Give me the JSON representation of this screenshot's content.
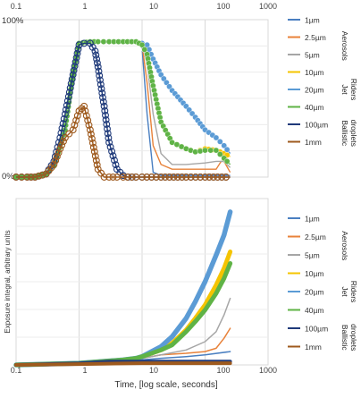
{
  "x_ticks": [
    "0.1",
    "1",
    "10",
    "100",
    "1000"
  ],
  "xlabel": "Time, [log scale, seconds]",
  "legend": {
    "entries": [
      {
        "label": "1µm",
        "color": "#4a7fc1"
      },
      {
        "label": "2.5µm",
        "color": "#e8823a"
      },
      {
        "label": "5µm",
        "color": "#a6a6a6"
      },
      {
        "label": "10µm",
        "color": "#f5c400"
      },
      {
        "label": "20µm",
        "color": "#5b9bd5"
      },
      {
        "label": "40µm",
        "color": "#5fb346"
      },
      {
        "label": "100µm",
        "color": "#1f3a7a"
      },
      {
        "label": "1mm",
        "color": "#9e5a1e"
      }
    ],
    "groups": [
      {
        "label": "Aerosols"
      },
      {
        "label": "Jet Riders"
      },
      {
        "label": "Ballistic droplets"
      }
    ]
  },
  "chart_data": [
    {
      "type": "line",
      "xscale": "log",
      "xlim": [
        0.1,
        1000
      ],
      "ylim": [
        0,
        100
      ],
      "y_tick_labels": [
        "0%",
        "100%"
      ],
      "series": [
        {
          "name": "1µm",
          "color": "#4a7fc1",
          "x": [
            0.1,
            0.15,
            0.2,
            0.3,
            0.4,
            0.6,
            0.8,
            1,
            1.5,
            2,
            3,
            5,
            8,
            10,
            12,
            15,
            20,
            30,
            50,
            100,
            150,
            200,
            250
          ],
          "y": [
            0,
            0,
            0,
            2,
            7,
            30,
            65,
            85,
            86,
            86,
            86,
            86,
            86,
            82,
            40,
            3,
            1,
            1,
            1,
            1,
            1,
            1,
            1
          ]
        },
        {
          "name": "2.5µm",
          "color": "#e8823a",
          "x": [
            0.1,
            0.15,
            0.2,
            0.3,
            0.4,
            0.6,
            0.8,
            1,
            1.5,
            2,
            3,
            5,
            8,
            10,
            12,
            15,
            20,
            30,
            50,
            100,
            150,
            180,
            200,
            250
          ],
          "y": [
            0,
            0,
            0,
            2,
            7,
            30,
            65,
            85,
            86,
            86,
            86,
            86,
            86,
            84,
            60,
            20,
            8,
            5,
            5,
            5,
            5,
            10,
            10,
            3
          ]
        },
        {
          "name": "5µm",
          "color": "#a6a6a6",
          "x": [
            0.1,
            0.15,
            0.2,
            0.3,
            0.4,
            0.6,
            0.8,
            1,
            1.5,
            2,
            3,
            5,
            8,
            10,
            12,
            15,
            20,
            30,
            50,
            100,
            150,
            200,
            250
          ],
          "y": [
            0,
            0,
            0,
            2,
            7,
            30,
            65,
            85,
            86,
            86,
            86,
            86,
            86,
            84,
            72,
            40,
            15,
            8,
            8,
            9,
            10,
            10,
            6
          ]
        },
        {
          "name": "10µm",
          "color": "#f5c400",
          "x": [
            0.1,
            0.15,
            0.2,
            0.3,
            0.4,
            0.6,
            0.8,
            1,
            1.5,
            2,
            3,
            5,
            8,
            10,
            12,
            15,
            20,
            30,
            50,
            70,
            100,
            150,
            200,
            250
          ],
          "y": [
            0,
            0,
            0,
            2,
            7,
            30,
            65,
            85,
            86,
            86,
            86,
            86,
            86,
            84,
            78,
            58,
            35,
            22,
            18,
            16,
            18,
            17,
            15,
            13
          ]
        },
        {
          "name": "20µm",
          "color": "#5b9bd5",
          "x": [
            0.1,
            0.15,
            0.2,
            0.3,
            0.4,
            0.6,
            0.8,
            1,
            1.5,
            2,
            3,
            5,
            8,
            10,
            12,
            15,
            20,
            30,
            50,
            70,
            100,
            150,
            200,
            250
          ],
          "y": [
            0,
            0,
            0,
            2,
            7,
            30,
            65,
            85,
            86,
            86,
            86,
            86,
            86,
            85,
            84,
            75,
            65,
            55,
            45,
            38,
            30,
            25,
            20,
            15
          ]
        },
        {
          "name": "40µm",
          "color": "#5fb346",
          "x": [
            0.1,
            0.15,
            0.2,
            0.3,
            0.4,
            0.6,
            0.8,
            1,
            1.5,
            2,
            3,
            5,
            8,
            10,
            12,
            15,
            20,
            30,
            50,
            70,
            100,
            150,
            200,
            250
          ],
          "y": [
            0,
            0,
            0,
            2,
            7,
            30,
            65,
            85,
            86,
            86,
            86,
            86,
            86,
            84,
            78,
            58,
            35,
            22,
            18,
            16,
            17,
            17,
            12,
            8
          ]
        },
        {
          "name": "100µm",
          "color": "#1f3a7a",
          "x": [
            0.1,
            0.15,
            0.2,
            0.3,
            0.4,
            0.5,
            0.6,
            0.8,
            1,
            1.2,
            1.5,
            1.8,
            2,
            2.5,
            3,
            4,
            5,
            6,
            8,
            10,
            20,
            50,
            100,
            250
          ],
          "y": [
            0,
            0,
            0,
            2,
            10,
            25,
            40,
            65,
            84,
            85,
            85,
            80,
            70,
            45,
            22,
            5,
            1,
            0,
            0,
            0,
            0,
            0,
            0,
            0
          ]
        },
        {
          "name": "1mm",
          "color": "#9e5a1e",
          "x": [
            0.1,
            0.15,
            0.2,
            0.3,
            0.4,
            0.5,
            0.6,
            0.8,
            1,
            1.2,
            1.5,
            2,
            2.5,
            3,
            4,
            5,
            8,
            10,
            20,
            50,
            100,
            250
          ],
          "y": [
            0,
            0,
            0,
            2,
            8,
            18,
            25,
            30,
            42,
            45,
            30,
            5,
            0,
            0,
            0,
            0,
            0,
            0,
            0,
            0,
            0,
            0
          ]
        }
      ]
    },
    {
      "type": "line",
      "xscale": "log",
      "xlim": [
        0.1,
        1000
      ],
      "ylim": [
        0,
        100
      ],
      "ylabel": "Exposure integral, arbitrary units",
      "series": [
        {
          "name": "1µm",
          "color": "#4a7fc1",
          "x": [
            0.1,
            1,
            5,
            10,
            20,
            50,
            100,
            250
          ],
          "y": [
            0,
            1,
            3,
            3,
            4,
            5,
            6,
            8
          ]
        },
        {
          "name": "2.5µm",
          "color": "#e8823a",
          "x": [
            0.1,
            1,
            5,
            10,
            20,
            50,
            100,
            150,
            200,
            250
          ],
          "y": [
            0,
            1,
            3,
            4,
            6,
            7,
            8,
            10,
            16,
            22
          ]
        },
        {
          "name": "5µm",
          "color": "#a6a6a6",
          "x": [
            0.1,
            1,
            5,
            10,
            20,
            50,
            100,
            150,
            200,
            250
          ],
          "y": [
            0,
            1,
            3,
            4,
            6,
            9,
            14,
            20,
            30,
            40
          ]
        },
        {
          "name": "10µm",
          "color": "#f5c400",
          "x": [
            0.1,
            1,
            5,
            8,
            10,
            20,
            30,
            50,
            70,
            100,
            150,
            200,
            250
          ],
          "y": [
            0,
            1,
            3,
            4,
            5,
            9,
            13,
            21,
            28,
            36,
            48,
            58,
            68
          ]
        },
        {
          "name": "20µm",
          "color": "#5b9bd5",
          "x": [
            0.1,
            1,
            5,
            8,
            10,
            20,
            30,
            50,
            70,
            100,
            150,
            200,
            250
          ],
          "y": [
            0,
            1,
            3,
            4,
            5,
            11,
            17,
            28,
            38,
            50,
            66,
            78,
            92
          ]
        },
        {
          "name": "40µm",
          "color": "#5fb346",
          "x": [
            0.1,
            1,
            5,
            8,
            10,
            20,
            30,
            50,
            70,
            100,
            150,
            200,
            250
          ],
          "y": [
            0,
            1,
            3,
            4,
            5,
            9,
            12,
            20,
            26,
            33,
            43,
            52,
            61
          ]
        },
        {
          "name": "100µm",
          "color": "#1f3a7a",
          "x": [
            0.1,
            1,
            3,
            10,
            100,
            250
          ],
          "y": [
            0,
            1,
            2,
            2,
            2,
            2
          ]
        },
        {
          "name": "1mm",
          "color": "#9e5a1e",
          "x": [
            0.1,
            1,
            10,
            100,
            250
          ],
          "y": [
            0,
            0.5,
            1,
            1,
            1
          ]
        }
      ]
    }
  ]
}
